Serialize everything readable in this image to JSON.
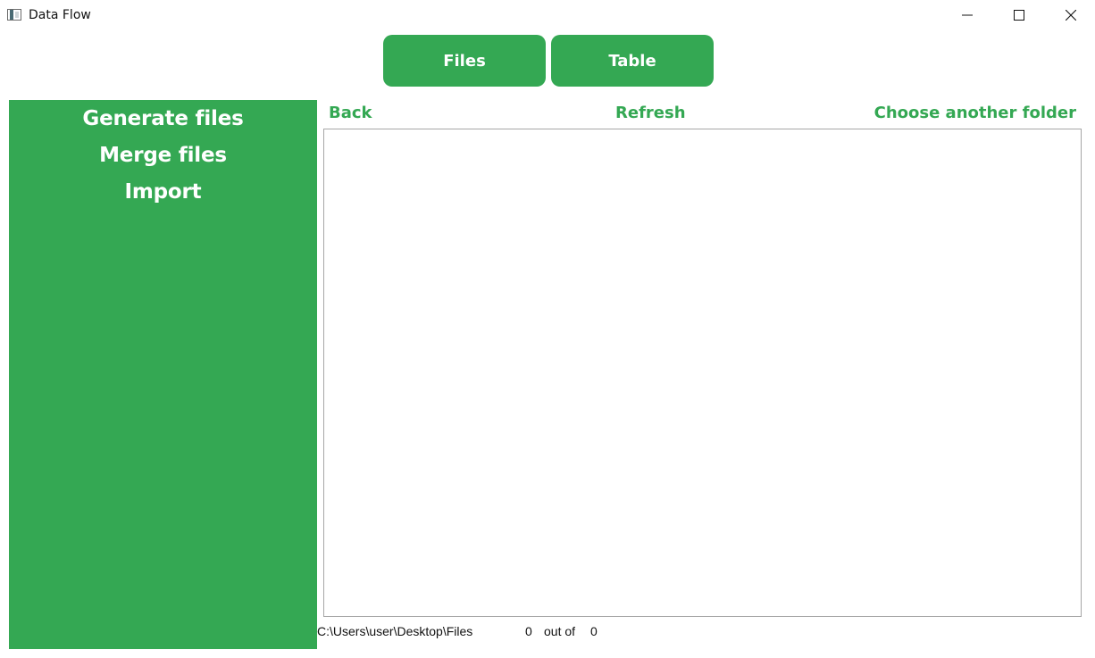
{
  "window": {
    "title": "Data Flow",
    "icon": "app-window-icon",
    "controls": {
      "minimize_icon": "minimize-icon",
      "maximize_icon": "maximize-icon",
      "close_icon": "close-icon"
    }
  },
  "tabs": [
    {
      "label": "Files"
    },
    {
      "label": "Table"
    }
  ],
  "sidebar": {
    "items": [
      {
        "label": "Generate files"
      },
      {
        "label": "Merge files"
      },
      {
        "label": "Import"
      }
    ]
  },
  "toolbar": {
    "back_label": "Back",
    "refresh_label": "Refresh",
    "choose_folder_label": "Choose another folder"
  },
  "file_list": {
    "items": []
  },
  "status": {
    "path": "C:\\Users\\user\\Desktop\\Files",
    "current": "0",
    "separator": "out of",
    "total": "0"
  },
  "colors": {
    "accent": "#34a853",
    "panel_border": "#a6a6a6",
    "text": "#111111"
  }
}
